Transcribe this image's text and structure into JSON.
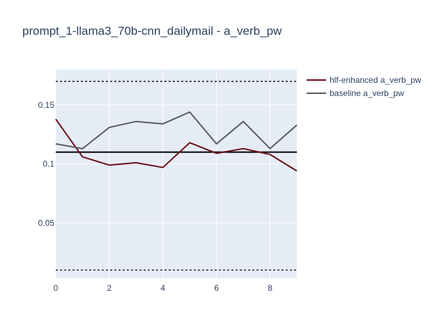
{
  "chart_data": {
    "type": "line",
    "title": "prompt_1-llama3_70b-cnn_dailymail - a_verb_pw",
    "xlabel": "",
    "ylabel": "",
    "xlim": [
      0,
      9
    ],
    "ylim": [
      0.003,
      0.18
    ],
    "x_ticks": [
      0,
      2,
      4,
      6,
      8
    ],
    "y_ticks": [
      0.05,
      0.1,
      0.15
    ],
    "x_tick_labels": [
      "0",
      "2",
      "4",
      "6",
      "8"
    ],
    "y_tick_labels": [
      "0.05",
      "0.1",
      "0.15"
    ],
    "grid": true,
    "legend_position": "top-right",
    "x": [
      0,
      1,
      2,
      3,
      4,
      5,
      6,
      7,
      8,
      9
    ],
    "series": [
      {
        "name": "hlf-enhanced a_verb_pw",
        "color": "#6b0e16",
        "values": [
          0.138,
          0.106,
          0.099,
          0.101,
          0.097,
          0.118,
          0.109,
          0.113,
          0.108,
          0.094
        ]
      },
      {
        "name": "baseline a_verb_pw",
        "color": "#555a63",
        "values": [
          0.117,
          0.113,
          0.131,
          0.136,
          0.134,
          0.144,
          0.117,
          0.136,
          0.113,
          0.133
        ]
      }
    ],
    "reference_lines": [
      {
        "y": 0.11,
        "style": "solid",
        "color": "#000000"
      },
      {
        "y": 0.17,
        "style": "dotted",
        "color": "#2a2a3a"
      },
      {
        "y": 0.01,
        "style": "dotted",
        "color": "#2a2a3a"
      }
    ],
    "plot_background": "#e5ecf6",
    "grid_color": "#ffffff"
  }
}
